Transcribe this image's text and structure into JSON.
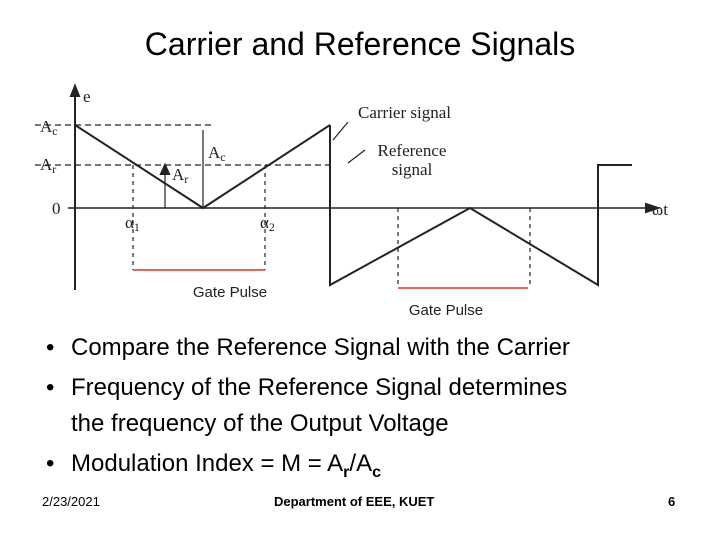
{
  "header": {
    "title": "Carrier and Reference Signals"
  },
  "diagram": {
    "axis_labels": {
      "y": "e",
      "x": "ωt",
      "zero": "0"
    },
    "levels": [
      {
        "main": "A",
        "sub": "c"
      },
      {
        "main": "A",
        "sub": "r"
      }
    ],
    "inner_labels": [
      {
        "main": "A",
        "sub": "c"
      },
      {
        "main": "A",
        "sub": "r"
      }
    ],
    "angles": [
      {
        "main": "α",
        "sub": "1"
      },
      {
        "main": "α",
        "sub": "2"
      }
    ],
    "carrier_label": "Carrier signal",
    "reference_label": [
      "Reference",
      "signal"
    ],
    "gate_labels": [
      "Gate Pulse",
      "Gate Pulse"
    ]
  },
  "bullets": [
    [
      "Compare the Reference Signal with the Carrier"
    ],
    [
      "Frequency of the Reference Signal determines",
      "the frequency of the Output Voltage"
    ],
    [
      "Modulation Index = M = A",
      "r",
      "/A",
      "c"
    ]
  ],
  "footer": {
    "date": "2/23/2021",
    "department": "Department of EEE, KUET",
    "page": "6"
  }
}
